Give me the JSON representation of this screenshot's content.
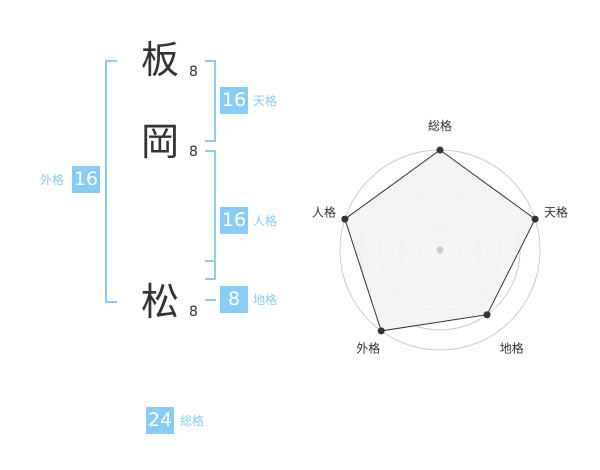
{
  "name": {
    "chars": [
      {
        "char": "板",
        "strokes": "8"
      },
      {
        "char": "岡",
        "strokes": "8"
      },
      {
        "char": "松",
        "strokes": "8"
      }
    ]
  },
  "scores": {
    "tenkaku": {
      "label": "天格",
      "value": "16"
    },
    "jinkaku": {
      "label": "人格",
      "value": "16"
    },
    "chikaku": {
      "label": "地格",
      "value": "8"
    },
    "gaikaku": {
      "label": "外格",
      "value": "16"
    },
    "soukaku": {
      "label": "総格",
      "value": "24"
    }
  },
  "colors": {
    "accent": "#88ccf7",
    "polygon_fill": "#f2f2f2",
    "grid": "#cccccc",
    "line": "#333333"
  },
  "chart_data": {
    "type": "radar",
    "axes": [
      "総格",
      "天格",
      "地格",
      "外格",
      "人格"
    ],
    "values": [
      5,
      5,
      4,
      5,
      5
    ],
    "rlim": [
      0,
      5
    ],
    "rings": 5
  }
}
